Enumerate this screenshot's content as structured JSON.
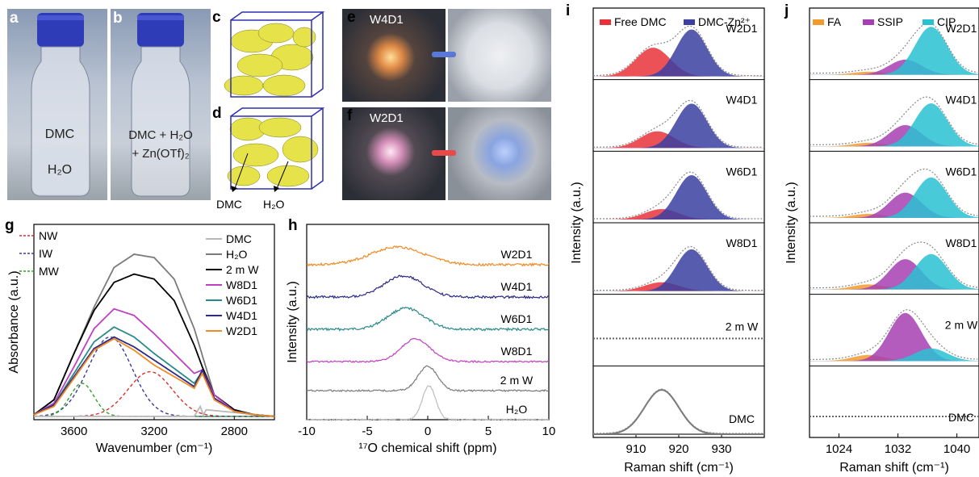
{
  "panels": {
    "a": {
      "label": "a",
      "upper": "DMC",
      "lower": "H₂O"
    },
    "b": {
      "label": "b",
      "line1": "DMC + H₂O",
      "line2": "+ Zn(OTf)₂"
    },
    "c": {
      "label": "c"
    },
    "d": {
      "label": "d",
      "arrow1": "DMC",
      "arrow2": "H₂O"
    },
    "e": {
      "label": "e",
      "tag": "W4D1"
    },
    "f": {
      "label": "f",
      "tag": "W2D1"
    },
    "g": {
      "label": "g"
    },
    "h": {
      "label": "h"
    },
    "i": {
      "label": "i"
    },
    "j": {
      "label": "j"
    }
  },
  "colors": {
    "free_dmc": "#e8323a",
    "dmc_zn": "#3b3fa1",
    "fa": "#f29a2e",
    "ssip": "#a63fb2",
    "cip": "#29c1d2",
    "nw": "#d9302b",
    "iw": "#3a3a9a",
    "mw": "#33a02c",
    "dmc_line": "#b8b8b8",
    "h2o_line": "#7a7a7a",
    "twomw": "#000000",
    "w8d1": "#c040c0",
    "w6d1": "#2a8a8a",
    "w4d1": "#2c2a85",
    "w2d1": "#f08a24"
  },
  "chart_data": [
    {
      "id": "g",
      "type": "line",
      "xlabel": "Wavenumber (cm⁻¹)",
      "ylabel": "Absorbance (a.u.)",
      "xlim": [
        3800,
        2600
      ],
      "xticks": [
        3600,
        3200,
        2800
      ],
      "legend_left": [
        "NW",
        "IW",
        "MW"
      ],
      "legend_right": [
        "DMC",
        "H₂O",
        "2 m W",
        "W8D1",
        "W6D1",
        "W4D1",
        "W2D1"
      ],
      "series": [
        {
          "name": "DMC",
          "x": [
            3800,
            3000,
            2970,
            2955,
            2940,
            2600
          ],
          "y": [
            0.02,
            0.02,
            0.08,
            0.03,
            0.06,
            0.02
          ]
        },
        {
          "name": "H₂O",
          "x": [
            3800,
            3700,
            3600,
            3500,
            3400,
            3300,
            3200,
            3100,
            3000,
            2950,
            2900,
            2800,
            2700,
            2600
          ],
          "y": [
            0.03,
            0.12,
            0.4,
            0.68,
            0.92,
            1.0,
            0.98,
            0.85,
            0.55,
            0.35,
            0.15,
            0.05,
            0.03,
            0.02
          ]
        },
        {
          "name": "2 m W",
          "x": [
            3800,
            3700,
            3600,
            3500,
            3400,
            3300,
            3200,
            3100,
            3000,
            2960,
            2900,
            2800,
            2700,
            2600
          ],
          "y": [
            0.03,
            0.12,
            0.4,
            0.66,
            0.83,
            0.88,
            0.85,
            0.72,
            0.45,
            0.32,
            0.15,
            0.06,
            0.03,
            0.02
          ]
        },
        {
          "name": "W8D1",
          "x": [
            3800,
            3700,
            3600,
            3500,
            3400,
            3300,
            3200,
            3100,
            3000,
            2960,
            2900,
            2800,
            2700,
            2600
          ],
          "y": [
            0.03,
            0.1,
            0.32,
            0.55,
            0.67,
            0.63,
            0.52,
            0.4,
            0.28,
            0.3,
            0.15,
            0.05,
            0.03,
            0.02
          ]
        },
        {
          "name": "W6D1",
          "x": [
            3800,
            3700,
            3600,
            3500,
            3400,
            3300,
            3200,
            3100,
            3000,
            2960,
            2900,
            2800,
            2700,
            2600
          ],
          "y": [
            0.03,
            0.09,
            0.28,
            0.47,
            0.56,
            0.5,
            0.4,
            0.31,
            0.22,
            0.29,
            0.13,
            0.05,
            0.03,
            0.02
          ]
        },
        {
          "name": "W4D1",
          "x": [
            3800,
            3700,
            3600,
            3500,
            3400,
            3300,
            3200,
            3100,
            3000,
            2960,
            2900,
            2800,
            2700,
            2600
          ],
          "y": [
            0.03,
            0.09,
            0.26,
            0.43,
            0.5,
            0.44,
            0.36,
            0.28,
            0.2,
            0.3,
            0.13,
            0.05,
            0.03,
            0.02
          ]
        },
        {
          "name": "W2D1",
          "x": [
            3800,
            3700,
            3600,
            3500,
            3400,
            3300,
            3200,
            3100,
            3000,
            2960,
            2900,
            2800,
            2700,
            2600
          ],
          "y": [
            0.03,
            0.08,
            0.25,
            0.42,
            0.49,
            0.42,
            0.33,
            0.26,
            0.19,
            0.28,
            0.12,
            0.05,
            0.03,
            0.02
          ]
        }
      ],
      "components": [
        {
          "name": "NW",
          "center": 3220,
          "height": 0.27,
          "width": 110
        },
        {
          "name": "IW",
          "center": 3420,
          "height": 0.48,
          "width": 110
        },
        {
          "name": "MW",
          "center": 3560,
          "height": 0.2,
          "width": 60
        }
      ]
    },
    {
      "id": "h",
      "type": "line",
      "xlabel": "¹⁷O chemical shift (ppm)",
      "ylabel": "Intensity (a.u.)",
      "xlim": [
        -10,
        10
      ],
      "xticks": [
        -10,
        -5,
        0,
        5,
        10
      ],
      "series": [
        {
          "name": "W2D1",
          "peak": -2.5,
          "height": 0.35,
          "width": 2.2
        },
        {
          "name": "W4D1",
          "peak": -2.0,
          "height": 0.55,
          "width": 1.6
        },
        {
          "name": "W6D1",
          "peak": -1.8,
          "height": 0.55,
          "width": 1.5
        },
        {
          "name": "W8D1",
          "peak": -1.0,
          "height": 0.6,
          "width": 1.2
        },
        {
          "name": "2 m W",
          "peak": 0.0,
          "height": 0.75,
          "width": 0.8
        },
        {
          "name": "H₂O",
          "peak": 0.1,
          "height": 1.0,
          "width": 0.55
        }
      ]
    },
    {
      "id": "i",
      "type": "area",
      "xlabel": "Raman shift (cm⁻¹)",
      "ylabel": "Intensity (a.u.)",
      "xlim": [
        900,
        940
      ],
      "xticks": [
        910,
        920,
        930
      ],
      "legend": [
        "Free DMC",
        "DMC-Zn²⁺"
      ],
      "series": [
        {
          "name": "W2D1",
          "free": {
            "center": 914,
            "height": 0.55
          },
          "zn": {
            "center": 923,
            "height": 0.9
          }
        },
        {
          "name": "W4D1",
          "free": {
            "center": 915,
            "height": 0.32
          },
          "zn": {
            "center": 923,
            "height": 0.85
          }
        },
        {
          "name": "W6D1",
          "free": {
            "center": 916,
            "height": 0.2
          },
          "zn": {
            "center": 923,
            "height": 0.85
          }
        },
        {
          "name": "W8D1",
          "free": {
            "center": 916,
            "height": 0.17
          },
          "zn": {
            "center": 923,
            "height": 0.8
          }
        },
        {
          "name": "2 m W",
          "flat": true
        },
        {
          "name": "DMC",
          "free": {
            "center": 916,
            "height": 0.85
          }
        }
      ]
    },
    {
      "id": "j",
      "type": "area",
      "xlabel": "Raman shift (cm⁻¹)",
      "ylabel": "Intensity (a.u.)",
      "xlim": [
        1020,
        1043
      ],
      "xticks": [
        1024,
        1032,
        1040
      ],
      "legend": [
        "FA",
        "SSIP",
        "CIP"
      ],
      "series": [
        {
          "name": "W2D1",
          "fa": 0.06,
          "ssip": 0.3,
          "cip": 0.95
        },
        {
          "name": "W4D1",
          "fa": 0.07,
          "ssip": 0.42,
          "cip": 0.85
        },
        {
          "name": "W6D1",
          "fa": 0.08,
          "ssip": 0.5,
          "cip": 0.8
        },
        {
          "name": "W8D1",
          "fa": 0.1,
          "ssip": 0.6,
          "cip": 0.7
        },
        {
          "name": "2 m W",
          "fa": 0.12,
          "ssip": 0.95,
          "cip": 0.25
        },
        {
          "name": "DMC",
          "flat": true
        }
      ]
    }
  ]
}
